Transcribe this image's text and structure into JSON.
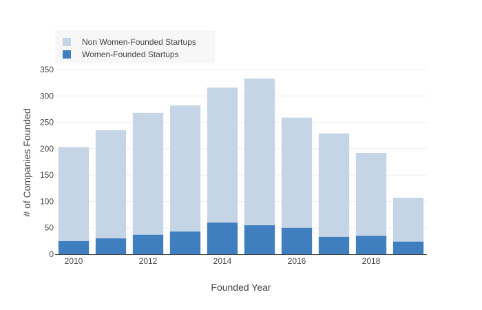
{
  "chart_data": {
    "type": "bar",
    "barmode": "stack",
    "x": [
      2010,
      2011,
      2012,
      2013,
      2014,
      2015,
      2016,
      2017,
      2018,
      2019
    ],
    "series": [
      {
        "name": "Women-Founded Startups",
        "color": "#3f7fc0",
        "values": [
          25,
          30,
          37,
          43,
          60,
          55,
          50,
          33,
          35,
          24
        ]
      },
      {
        "name": "Non Women-Founded Startups",
        "color": "#c6d5e5",
        "values": [
          178,
          205,
          231,
          239,
          256,
          278,
          209,
          196,
          157,
          83
        ]
      }
    ],
    "xlabel": "Founded Year",
    "ylabel": "# of Companies Founded",
    "x_ticks": [
      2010,
      2012,
      2014,
      2016,
      2018
    ],
    "y_ticks": [
      0,
      50,
      100,
      150,
      200,
      250,
      300,
      350
    ],
    "ylim": [
      0,
      350
    ],
    "grid": true,
    "legend_position": "top-left"
  }
}
